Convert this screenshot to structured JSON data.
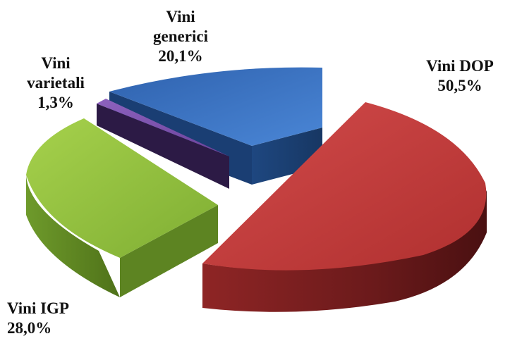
{
  "chart_data": {
    "type": "pie",
    "style": "3d-exploded",
    "slices": [
      {
        "label_line1": "Vini",
        "label_line2": "generici",
        "value_text": "20,1%",
        "value": 20.1,
        "color": "#3B73C1",
        "side_color": "#1F4A86"
      },
      {
        "label_line1": "Vini DOP",
        "label_line2": "",
        "value_text": "50,5%",
        "value": 50.5,
        "color": "#C0393A",
        "side_color": "#6E1A1B"
      },
      {
        "label_line1": "Vini IGP",
        "label_line2": "",
        "value_text": "28,0%",
        "value": 28.0,
        "color": "#8DBE3D",
        "side_color": "#5E8324"
      },
      {
        "label_line1": "Vini",
        "label_line2": "varietali",
        "value_text": "1,3%",
        "value": 1.3,
        "color": "#7A4FA8",
        "side_color": "#2F1E46"
      }
    ]
  }
}
